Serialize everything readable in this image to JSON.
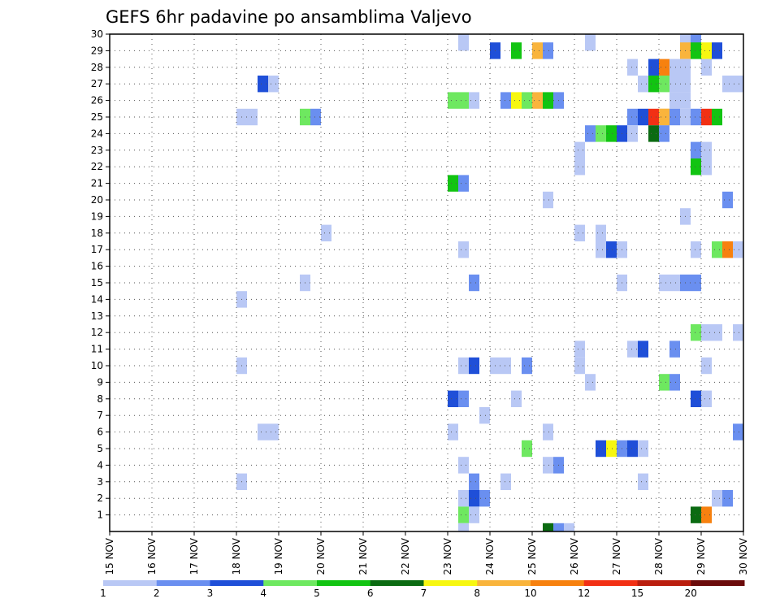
{
  "chart_data": {
    "type": "heatmap",
    "title": "GEFS 6hr padavine po ansamblima Valjevo",
    "xlabel": "",
    "ylabel": "",
    "x_ticks": [
      "15 NOV",
      "16 NOV",
      "17 NOV",
      "18 NOV",
      "19 NOV",
      "20 NOV",
      "21 NOV",
      "22 NOV",
      "23 NOV",
      "24 NOV",
      "25 NOV",
      "26 NOV",
      "27 NOV",
      "28 NOV",
      "29 NOV",
      "30 NOV"
    ],
    "x_range_days": [
      15,
      30
    ],
    "y_ticks": [
      1,
      2,
      3,
      4,
      5,
      6,
      7,
      8,
      9,
      10,
      11,
      12,
      13,
      14,
      15,
      16,
      17,
      18,
      19,
      20,
      21,
      22,
      23,
      24,
      25,
      26,
      27,
      28,
      29,
      30
    ],
    "y_range": [
      0,
      30
    ],
    "grid": true,
    "colorbar": {
      "levels": [
        "1",
        "2",
        "3",
        "4",
        "5",
        "6",
        "7",
        "8",
        "10",
        "12",
        "15",
        "20"
      ],
      "colors": [
        "#b9c8f5",
        "#6a8ff0",
        "#1f4fd8",
        "#6ee860",
        "#12c412",
        "#0b6b12",
        "#f7f711",
        "#f9b43c",
        "#f7810f",
        "#f23014",
        "#ba1e0e",
        "#6b0b0b"
      ]
    },
    "cell_width_days": 0.25,
    "cells": [
      [
        23.25,
        30,
        1
      ],
      [
        26.25,
        30,
        1
      ],
      [
        28.5,
        30,
        1
      ],
      [
        28.75,
        30,
        2
      ],
      [
        24.0,
        29,
        3
      ],
      [
        24.5,
        29,
        5
      ],
      [
        25.0,
        29,
        8
      ],
      [
        25.25,
        29,
        2
      ],
      [
        28.5,
        29,
        8
      ],
      [
        28.75,
        29,
        5
      ],
      [
        29.0,
        29,
        7
      ],
      [
        29.25,
        29,
        3
      ],
      [
        27.25,
        28,
        1
      ],
      [
        27.75,
        28,
        3
      ],
      [
        28.0,
        28,
        9
      ],
      [
        28.25,
        28,
        1
      ],
      [
        28.5,
        28,
        1
      ],
      [
        29.0,
        28,
        1
      ],
      [
        18.5,
        27,
        3
      ],
      [
        18.75,
        27,
        1
      ],
      [
        27.5,
        27,
        1
      ],
      [
        27.75,
        27,
        5
      ],
      [
        28.0,
        27,
        4
      ],
      [
        28.25,
        27,
        1
      ],
      [
        28.5,
        27,
        1
      ],
      [
        29.5,
        27,
        1
      ],
      [
        29.75,
        27,
        1
      ],
      [
        23.0,
        26,
        4
      ],
      [
        23.25,
        26,
        4
      ],
      [
        23.5,
        26,
        1
      ],
      [
        24.25,
        26,
        2
      ],
      [
        24.5,
        26,
        7
      ],
      [
        24.75,
        26,
        4
      ],
      [
        25.0,
        26,
        8
      ],
      [
        25.25,
        26,
        5
      ],
      [
        25.5,
        26,
        2
      ],
      [
        28.25,
        26,
        1
      ],
      [
        28.5,
        26,
        1
      ],
      [
        18.0,
        25,
        1
      ],
      [
        18.25,
        25,
        1
      ],
      [
        19.5,
        25,
        4
      ],
      [
        19.75,
        25,
        2
      ],
      [
        27.25,
        25,
        2
      ],
      [
        27.5,
        25,
        3
      ],
      [
        27.75,
        25,
        10
      ],
      [
        28.0,
        25,
        8
      ],
      [
        28.25,
        25,
        2
      ],
      [
        28.5,
        25,
        1
      ],
      [
        28.75,
        25,
        2
      ],
      [
        29.0,
        25,
        10
      ],
      [
        29.25,
        25,
        5
      ],
      [
        28.0,
        25,
        8
      ],
      [
        26.25,
        24,
        2
      ],
      [
        26.5,
        24,
        4
      ],
      [
        26.75,
        24,
        5
      ],
      [
        27.0,
        24,
        3
      ],
      [
        27.25,
        24,
        1
      ],
      [
        27.75,
        24,
        6
      ],
      [
        28.0,
        24,
        2
      ],
      [
        26.0,
        23,
        1
      ],
      [
        28.75,
        23,
        2
      ],
      [
        29.0,
        23,
        1
      ],
      [
        26.0,
        22,
        1
      ],
      [
        28.75,
        22,
        5
      ],
      [
        29.0,
        22,
        1
      ],
      [
        23.0,
        21,
        5
      ],
      [
        23.25,
        21,
        2
      ],
      [
        25.25,
        20,
        1
      ],
      [
        29.5,
        20,
        2
      ],
      [
        28.5,
        19,
        1
      ],
      [
        20.0,
        18,
        1
      ],
      [
        26.0,
        18,
        1
      ],
      [
        26.5,
        18,
        1
      ],
      [
        23.25,
        17,
        1
      ],
      [
        26.5,
        17,
        1
      ],
      [
        26.75,
        17,
        3
      ],
      [
        27.0,
        17,
        1
      ],
      [
        28.75,
        17,
        1
      ],
      [
        29.25,
        17,
        4
      ],
      [
        29.5,
        17,
        9
      ],
      [
        29.75,
        17,
        1
      ],
      [
        19.5,
        15,
        1
      ],
      [
        23.5,
        15,
        2
      ],
      [
        27.0,
        15,
        1
      ],
      [
        28.0,
        15,
        1
      ],
      [
        28.25,
        15,
        1
      ],
      [
        28.5,
        15,
        2
      ],
      [
        28.75,
        15,
        2
      ],
      [
        18.0,
        14,
        1
      ],
      [
        28.75,
        12,
        4
      ],
      [
        29.0,
        12,
        1
      ],
      [
        29.25,
        12,
        1
      ],
      [
        29.75,
        12,
        1
      ],
      [
        26.0,
        11,
        1
      ],
      [
        27.25,
        11,
        1
      ],
      [
        27.5,
        11,
        3
      ],
      [
        28.25,
        11,
        2
      ],
      [
        18.0,
        10,
        1
      ],
      [
        23.25,
        10,
        1
      ],
      [
        23.5,
        10,
        3
      ],
      [
        24.0,
        10,
        1
      ],
      [
        24.25,
        10,
        1
      ],
      [
        24.75,
        10,
        2
      ],
      [
        26.0,
        10,
        1
      ],
      [
        29.0,
        10,
        1
      ],
      [
        26.25,
        9,
        1
      ],
      [
        28.0,
        9,
        4
      ],
      [
        28.25,
        9,
        2
      ],
      [
        23.0,
        8,
        3
      ],
      [
        23.25,
        8,
        2
      ],
      [
        24.5,
        8,
        1
      ],
      [
        28.75,
        8,
        3
      ],
      [
        29.0,
        8,
        1
      ],
      [
        23.75,
        7,
        1
      ],
      [
        18.5,
        6,
        1
      ],
      [
        18.75,
        6,
        1
      ],
      [
        23.0,
        6,
        1
      ],
      [
        25.25,
        6,
        1
      ],
      [
        29.75,
        6,
        2
      ],
      [
        24.75,
        5,
        4
      ],
      [
        26.5,
        5,
        3
      ],
      [
        26.75,
        5,
        7
      ],
      [
        27.0,
        5,
        2
      ],
      [
        27.25,
        5,
        3
      ],
      [
        27.5,
        5,
        1
      ],
      [
        23.25,
        4,
        1
      ],
      [
        25.25,
        4,
        1
      ],
      [
        25.5,
        4,
        2
      ],
      [
        18.0,
        3,
        1
      ],
      [
        23.5,
        3,
        2
      ],
      [
        24.25,
        3,
        1
      ],
      [
        27.5,
        3,
        1
      ],
      [
        23.25,
        2,
        1
      ],
      [
        23.5,
        2,
        3
      ],
      [
        23.75,
        2,
        2
      ],
      [
        29.25,
        2,
        1
      ],
      [
        29.5,
        2,
        2
      ],
      [
        23.25,
        1,
        4
      ],
      [
        23.5,
        1,
        1
      ],
      [
        28.75,
        1,
        6
      ],
      [
        29.0,
        1,
        9
      ],
      [
        23.25,
        0,
        1
      ],
      [
        25.25,
        0,
        6
      ],
      [
        25.5,
        0,
        2
      ],
      [
        25.75,
        0,
        1
      ]
    ]
  }
}
